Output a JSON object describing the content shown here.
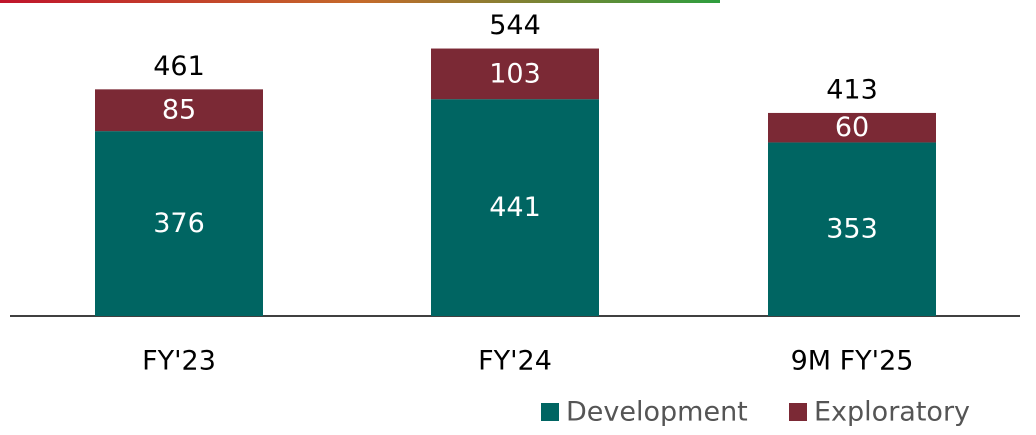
{
  "chart_data": {
    "type": "stacked_bar",
    "categories": [
      "FY'23",
      "FY'24",
      "9M FY'25"
    ],
    "series": [
      {
        "name": "Development",
        "color": "#006562",
        "values": [
          376,
          441,
          353
        ]
      },
      {
        "name": "Exploratory",
        "color": "#7b2935",
        "values": [
          85,
          103,
          60
        ]
      }
    ],
    "totals": [
      461,
      544,
      413
    ],
    "ylim": [
      0,
      600
    ],
    "legend": "bottom-right"
  }
}
